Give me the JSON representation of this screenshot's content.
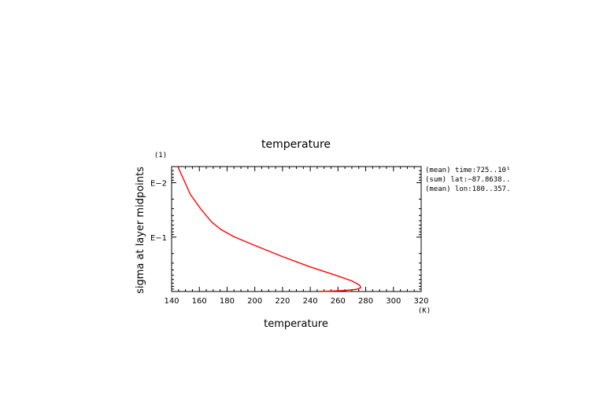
{
  "chart_data": {
    "type": "line",
    "title": "temperature",
    "xlabel": "temperature",
    "x_unit": "(K)",
    "ylabel": "sigma at layer midpoints",
    "y_unit": "(1)",
    "xlim": [
      140,
      320
    ],
    "ylim": [
      0.997,
      0.00505
    ],
    "y_scale": "log",
    "x_ticks": [
      140,
      160,
      180,
      200,
      220,
      240,
      260,
      280,
      300,
      320
    ],
    "y_tick_labels": [
      {
        "value": 0.01,
        "label": "E−2"
      },
      {
        "value": 0.1,
        "label": "E−1"
      }
    ],
    "series": [
      {
        "color": "#ff0000",
        "points": [
          {
            "x": 144.5,
            "y": 0.00505
          },
          {
            "x": 153.5,
            "y": 0.0164
          },
          {
            "x": 161.0,
            "y": 0.0303
          },
          {
            "x": 169.0,
            "y": 0.0531
          },
          {
            "x": 175.5,
            "y": 0.0721
          },
          {
            "x": 185.0,
            "y": 0.0985
          },
          {
            "x": 200.0,
            "y": 0.142
          },
          {
            "x": 220.0,
            "y": 0.228
          },
          {
            "x": 240.0,
            "y": 0.352
          },
          {
            "x": 260.0,
            "y": 0.518
          },
          {
            "x": 270.0,
            "y": 0.636
          },
          {
            "x": 275.5,
            "y": 0.757
          },
          {
            "x": 276.5,
            "y": 0.846
          },
          {
            "x": 273.5,
            "y": 0.907
          },
          {
            "x": 265.0,
            "y": 0.955
          },
          {
            "x": 255.0,
            "y": 0.982
          },
          {
            "x": 246.5,
            "y": 0.997
          }
        ]
      }
    ],
    "annotations": [
      "(mean) time:725..10¹",
      "(sum) lat:−87.8638..",
      "(mean) lon:180..357."
    ]
  }
}
